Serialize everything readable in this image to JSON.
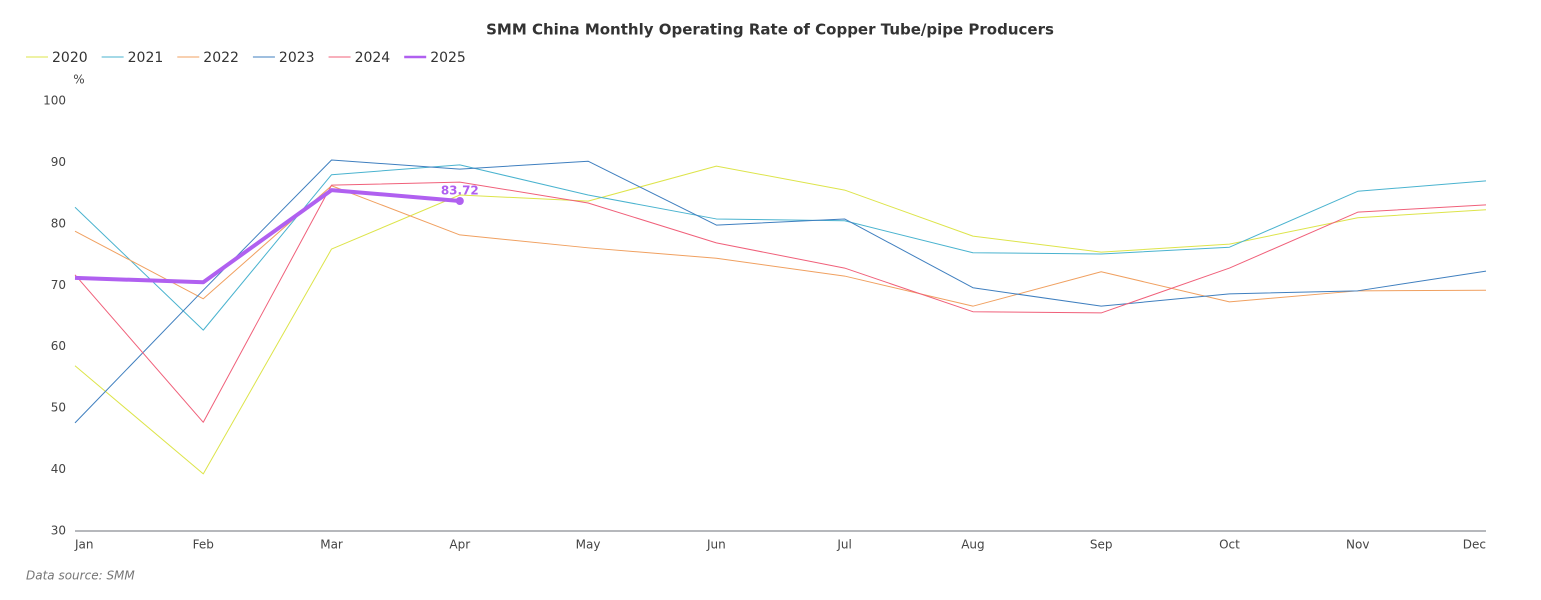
{
  "chart_data": {
    "type": "line",
    "title": "SMM China Monthly Operating Rate of Copper Tube/pipe Producers",
    "y_label": "%",
    "source": "Data source:  SMM",
    "categories": [
      "Jan",
      "Feb",
      "Mar",
      "Apr",
      "May",
      "Jun",
      "Jul",
      "Aug",
      "Sep",
      "Oct",
      "Nov",
      "Dec"
    ],
    "series": [
      {
        "name": "2020",
        "color": "#dde44a",
        "width": 1,
        "values": [
          56.9,
          39.3,
          75.9,
          84.7,
          83.7,
          89.4,
          85.5,
          78.0,
          75.4,
          76.7,
          81.0,
          82.3
        ]
      },
      {
        "name": "2021",
        "color": "#4ab3cf",
        "width": 1,
        "values": [
          82.7,
          62.7,
          88.0,
          89.6,
          84.7,
          80.8,
          80.5,
          75.3,
          75.1,
          76.2,
          85.3,
          87.0
        ]
      },
      {
        "name": "2022",
        "color": "#f0a060",
        "width": 1,
        "values": [
          78.8,
          67.8,
          86.2,
          78.2,
          76.1,
          74.4,
          71.5,
          66.6,
          72.2,
          67.3,
          69.1,
          69.2
        ]
      },
      {
        "name": "2023",
        "color": "#3f7fbf",
        "width": 1,
        "values": [
          47.6,
          69.2,
          90.4,
          88.9,
          90.2,
          79.8,
          80.8,
          69.6,
          66.6,
          68.6,
          69.1,
          72.3
        ]
      },
      {
        "name": "2024",
        "color": "#f0607a",
        "width": 1,
        "values": [
          71.7,
          47.7,
          86.3,
          86.8,
          83.4,
          76.9,
          72.8,
          65.7,
          65.5,
          72.8,
          81.9,
          83.1
        ]
      },
      {
        "name": "2025",
        "color": "#b060f0",
        "width": 4,
        "values": [
          71.2,
          70.5,
          85.5,
          83.72,
          null,
          null,
          null,
          null,
          null,
          null,
          null,
          null
        ],
        "value_labels": [
          null,
          null,
          null,
          "83.72",
          null,
          null,
          null,
          null,
          null,
          null,
          null,
          null
        ]
      }
    ],
    "ylim": [
      30,
      100
    ],
    "yticks": [
      30,
      40,
      50,
      60,
      70,
      80,
      90,
      100
    ],
    "grid": false,
    "legend": "top-left"
  }
}
